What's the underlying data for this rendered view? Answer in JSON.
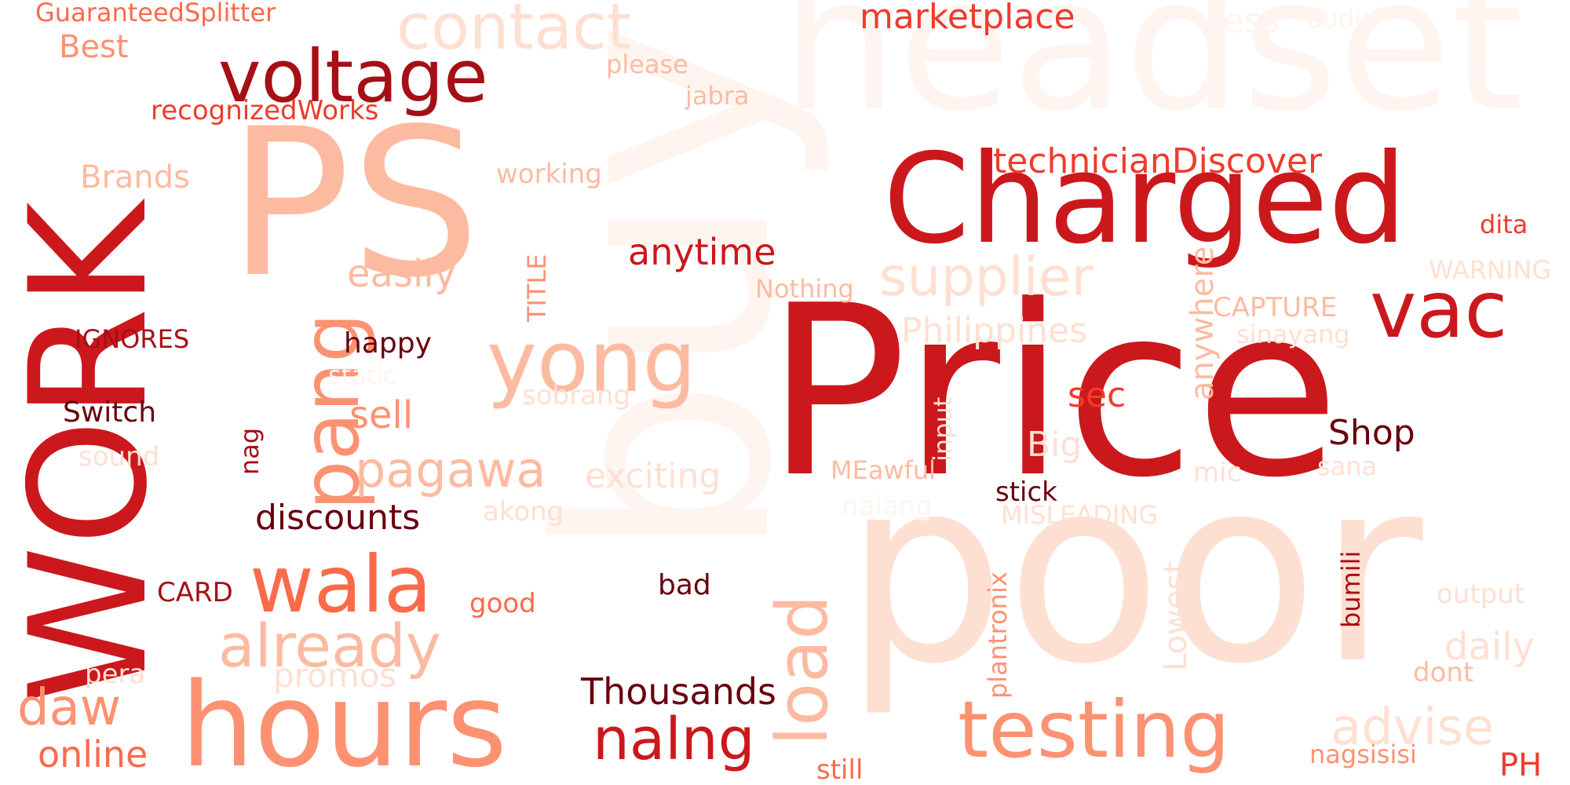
{
  "palette": {
    "darkest": "#67000d",
    "dark": "#a50f15",
    "red": "#cb181d",
    "mid": "#ef3b2c",
    "salmon": "#fb6a4a",
    "light": "#fc9272",
    "lighter": "#fcbba1",
    "pale": "#fee0d2",
    "palest": "#fff5f0"
  },
  "words": {
    "buy": "buy",
    "headset": "headset",
    "Price": "Price",
    "poor": "poor",
    "PS": "PS",
    "WORK": "WORK",
    "Charged": "Charged",
    "hours": "hours",
    "testing": "testing",
    "voltage": "voltage",
    "wala": "wala",
    "yong": "yong",
    "vac": "vac",
    "contact": "contact",
    "pang": "pang",
    "load": "load",
    "nalng": "nalng",
    "supplier": "supplier",
    "already": "already",
    "pagawa": "pagawa",
    "advise": "advise",
    "daw": "daw",
    "marketplace": "marketplace",
    "technicianDiscover": "technicianDiscover",
    "anytime": "anytime",
    "Thousands": "Thousands",
    "discounts": "discounts",
    "easily": "easily",
    "sell": "sell",
    "online": "online",
    "anywhere": "anywhere",
    "Lowest": "Lowest",
    "Philippines": "Philippines",
    "exciting": "exciting",
    "Shop": "Shop",
    "Best": "Best",
    "Brands": "Brands",
    "GuaranteedSplitter": "GuaranteedSplitter",
    "recognizedWorks": "recognizedWorks",
    "please": "please",
    "jabra": "jabra",
    "less": "less",
    "audio": "audio",
    "working": "working",
    "dita": "dita",
    "WARNING": "WARNING",
    "Nothing": "Nothing",
    "CAPTURE": "CAPTURE",
    "sinayang": "sinayang",
    "TITLE": "TITLE",
    "IGNORES": "IGNORES",
    "happy": "happy",
    "static": "static",
    "sobrang": "sobrang",
    "sec": "sec",
    "Switch": "Switch",
    "nag": "nag",
    "sound": "sound",
    "input": "input",
    "Big": "Big",
    "MEawful": "MEawful",
    "mic": "mic",
    "sana": "sana",
    "stick": "stick",
    "nalang": "nalang",
    "MISLEADING": "MISLEADING",
    "akong": "akong",
    "plantronix": "plantronix",
    "bumili": "bumili",
    "CARD": "CARD",
    "good": "good",
    "bad": "bad",
    "output": "output",
    "daily": "daily",
    "dont": "dont",
    "pera": "pera",
    "promos": "promos",
    "still": "still",
    "nagsisisi": "nagsisisi",
    "PH": "PH"
  }
}
